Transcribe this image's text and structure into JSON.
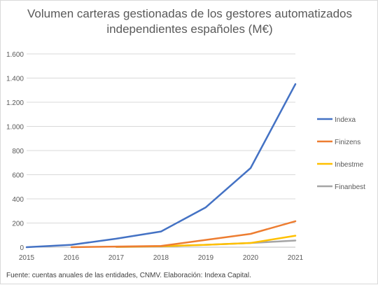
{
  "chart_data": {
    "type": "line",
    "title": "Volumen carteras gestionadas de los gestores automatizados independientes españoles (M€)",
    "title_lines": [
      "Volumen carteras gestionadas de los gestores automatizados",
      "independientes españoles (M€)"
    ],
    "x": [
      "2015",
      "2016",
      "2017",
      "2018",
      "2019",
      "2020",
      "2021"
    ],
    "ylim": [
      0,
      1600
    ],
    "yticks": [
      0,
      200,
      400,
      600,
      800,
      1000,
      1200,
      1400,
      1600
    ],
    "ytick_labels": [
      "0",
      "200",
      "400",
      "600",
      "800",
      "1.000",
      "1.200",
      "1.400",
      "1.600"
    ],
    "grid": true,
    "legend_position": "right",
    "series": [
      {
        "name": "Indexa",
        "color": "#4472c4",
        "values": [
          0,
          20,
          70,
          130,
          330,
          655,
          1350
        ]
      },
      {
        "name": "Finizens",
        "color": "#ed7d31",
        "values": [
          null,
          0,
          5,
          10,
          60,
          110,
          215
        ]
      },
      {
        "name": "Inbestme",
        "color": "#ffc000",
        "values": [
          null,
          null,
          3,
          8,
          20,
          35,
          95
        ]
      },
      {
        "name": "Finanbest",
        "color": "#a5a5a5",
        "values": [
          null,
          null,
          2,
          5,
          20,
          35,
          55
        ]
      }
    ],
    "source": "Fuente: cuentas anuales de las entidades, CNMV. Elaboración: Indexa Capital."
  }
}
